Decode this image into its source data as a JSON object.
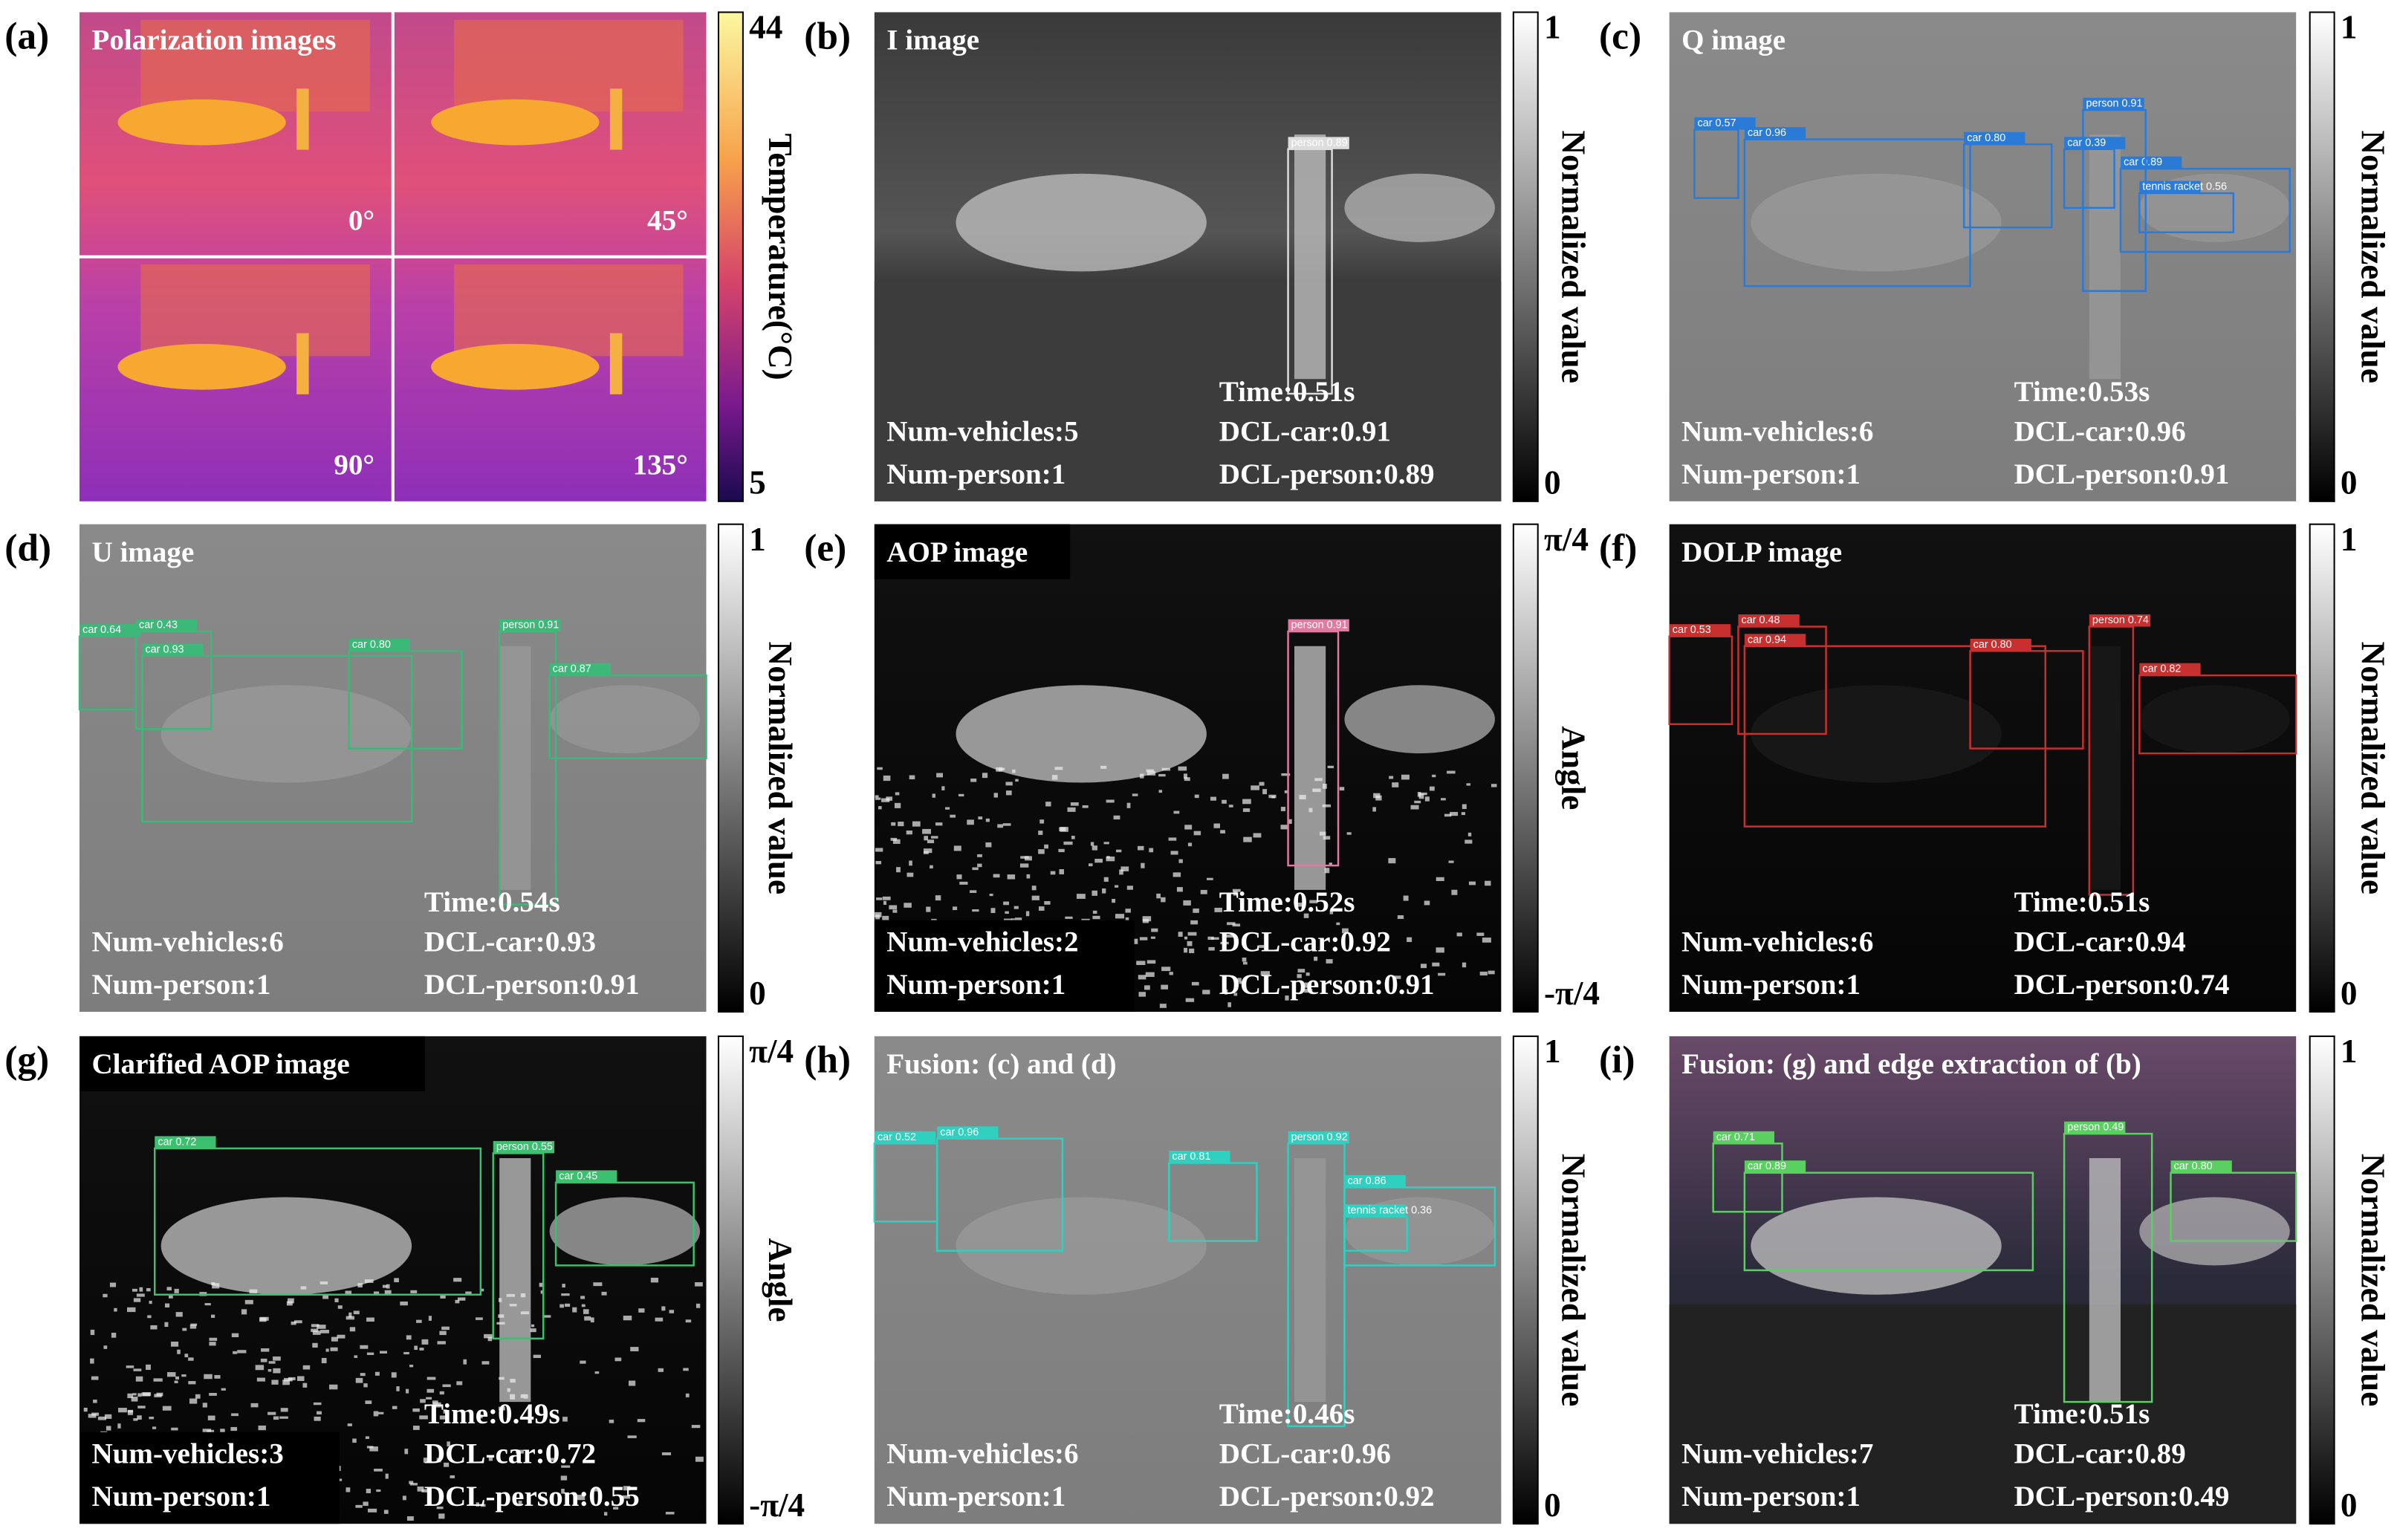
{
  "panels": [
    {
      "label": "(a)",
      "title": "Polarization images",
      "angles": [
        "0°",
        "45°",
        "90°",
        "135°"
      ],
      "colorbar": {
        "top": "44",
        "bottom": "5",
        "title": "Temperature(°C)"
      }
    },
    {
      "label": "(b)",
      "title": "I image",
      "colorbar": {
        "top": "1",
        "bottom": "0",
        "title": "Normalized value"
      },
      "stats": {
        "time": "Time:0.51s",
        "vehicles": "Num-vehicles:5",
        "persons": "Num-person:1",
        "dcl_car": "DCL-car:0.91",
        "dcl_person": "DCL-person:0.89"
      },
      "detections": [
        "person 0.89"
      ]
    },
    {
      "label": "(c)",
      "title": "Q image",
      "colorbar": {
        "top": "1",
        "bottom": "0",
        "title": "Normalized value"
      },
      "stats": {
        "time": "Time:0.53s",
        "vehicles": "Num-vehicles:6",
        "persons": "Num-person:1",
        "dcl_car": "DCL-car:0.96",
        "dcl_person": "DCL-person:0.91"
      },
      "detections": [
        "car 0.57",
        "car 0.96",
        "car 0.80",
        "car 0.39",
        "car 0.89",
        "person 0.91",
        "tennis racket 0.56"
      ]
    },
    {
      "label": "(d)",
      "title": "U image",
      "colorbar": {
        "top": "1",
        "bottom": "0",
        "title": "Normalized value"
      },
      "stats": {
        "time": "Time:0.54s",
        "vehicles": "Num-vehicles:6",
        "persons": "Num-person:1",
        "dcl_car": "DCL-car:0.93",
        "dcl_person": "DCL-person:0.91"
      },
      "detections": [
        "car 0.64",
        "car 0.43",
        "car 0.93",
        "car 0.80",
        "person 0.91",
        "car 0.87"
      ]
    },
    {
      "label": "(e)",
      "title": "AOP image",
      "colorbar": {
        "top": "π/4",
        "bottom": "-π/4",
        "title": "Angle"
      },
      "stats": {
        "time": "Time:0.52s",
        "vehicles": "Num-vehicles:2",
        "persons": "Num-person:1",
        "dcl_car": "DCL-car:0.92",
        "dcl_person": "DCL-person:0.91"
      },
      "detections": [
        "person 0.91"
      ]
    },
    {
      "label": "(f)",
      "title": "DOLP image",
      "colorbar": {
        "top": "1",
        "bottom": "0",
        "title": "Normalized value"
      },
      "stats": {
        "time": "Time:0.51s",
        "vehicles": "Num-vehicles:6",
        "persons": "Num-person:1",
        "dcl_car": "DCL-car:0.94",
        "dcl_person": "DCL-person:0.74"
      },
      "detections": [
        "car 0.53",
        "car 0.48",
        "car 0.94",
        "car 0.80",
        "person 0.74",
        "car 0.82"
      ]
    },
    {
      "label": "(g)",
      "title": "Clarified AOP image",
      "colorbar": {
        "top": "π/4",
        "bottom": "-π/4",
        "title": "Angle"
      },
      "stats": {
        "time": "Time:0.49s",
        "vehicles": "Num-vehicles:3",
        "persons": "Num-person:1",
        "dcl_car": "DCL-car:0.72",
        "dcl_person": "DCL-person:0.55"
      },
      "detections": [
        "car 0.72",
        "person 0.55",
        "car 0.45"
      ]
    },
    {
      "label": "(h)",
      "title": "Fusion: (c) and (d)",
      "colorbar": {
        "top": "1",
        "bottom": "0",
        "title": "Normalized value"
      },
      "stats": {
        "time": "Time:0.46s",
        "vehicles": "Num-vehicles:6",
        "persons": "Num-person:1",
        "dcl_car": "DCL-car:0.96",
        "dcl_person": "DCL-person:0.92"
      },
      "detections": [
        "car 0.52",
        "car 0.96",
        "car 0.81",
        "person 0.92",
        "car 0.86",
        "tennis racket 0.36"
      ]
    },
    {
      "label": "(i)",
      "title": "Fusion: (g) and edge extraction of (b)",
      "colorbar": {
        "top": "1",
        "bottom": "0",
        "title": "Normalized value"
      },
      "stats": {
        "time": "Time:0.51s",
        "vehicles": "Num-vehicles:7",
        "persons": "Num-person:1",
        "dcl_car": "DCL-car:0.89",
        "dcl_person": "DCL-person:0.49"
      },
      "detections": [
        "car 0.71",
        "car 0.89",
        "person 0.49",
        "car 0.80"
      ]
    }
  ]
}
